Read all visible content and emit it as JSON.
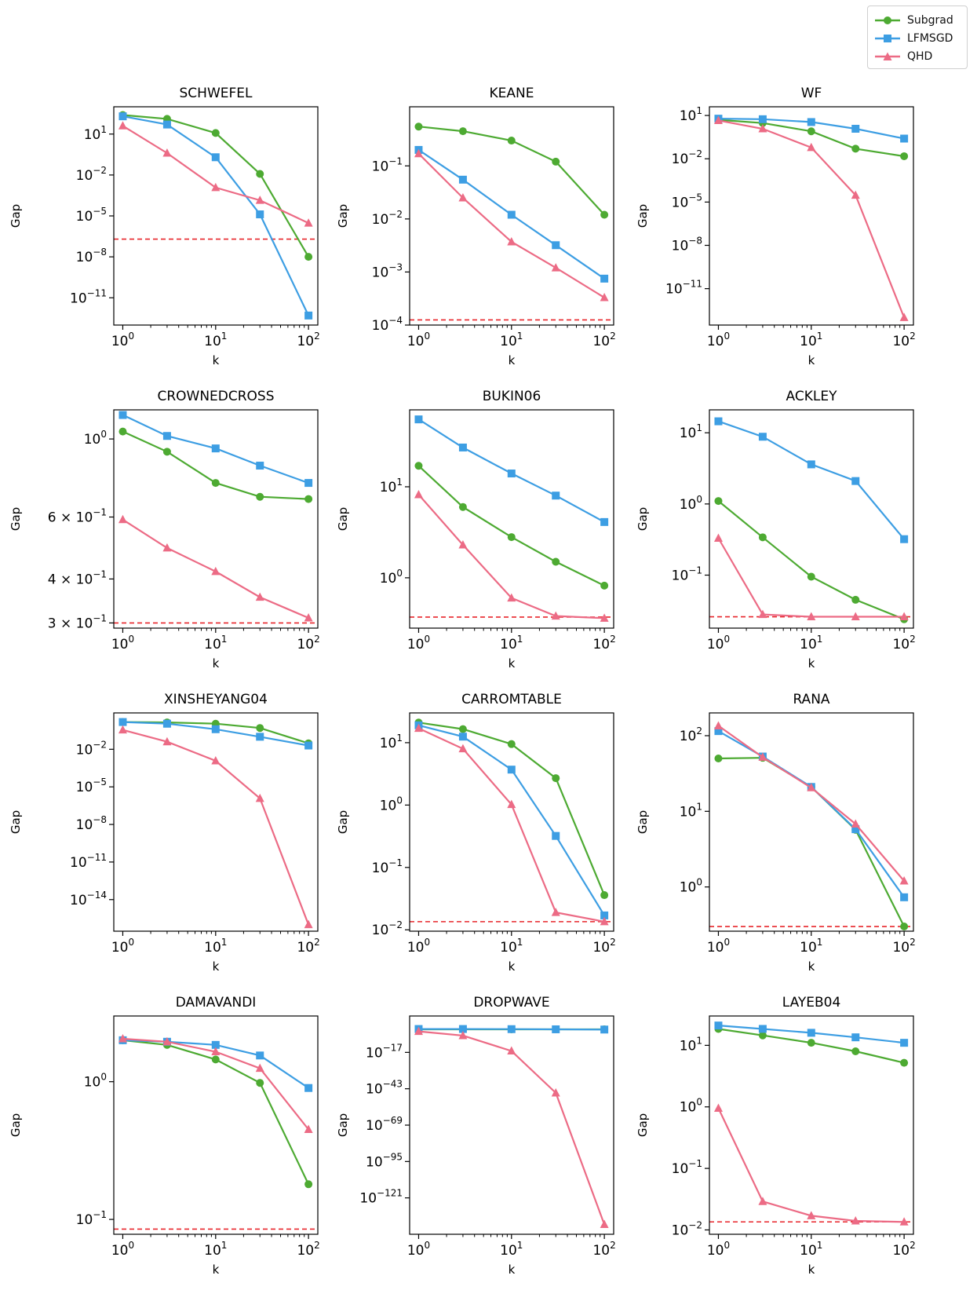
{
  "legend": {
    "items": [
      {
        "label": "Subgrad",
        "color": "#4daa32",
        "marker": "circle"
      },
      {
        "label": "LFMSGD",
        "color": "#3d9ee3",
        "marker": "square"
      },
      {
        "label": "QHD",
        "color": "#ec6b85",
        "marker": "triangle"
      }
    ]
  },
  "chart_data": [
    {
      "type": "line",
      "title": "SCHWEFEL",
      "xlabel": "k",
      "ylabel": "Gap",
      "xscale": "log",
      "yscale": "log",
      "x": [
        1,
        3,
        10,
        30,
        100
      ],
      "xlim": [
        0.8,
        126
      ],
      "ylim": [
        1e-13,
        1000.0
      ],
      "yticks": [
        {
          "v": 10,
          "label": "10^1"
        },
        {
          "v": 0.01,
          "label": "10^-2"
        },
        {
          "v": 1e-05,
          "label": "10^-5"
        },
        {
          "v": 1e-08,
          "label": "10^-8"
        },
        {
          "v": 1e-11,
          "label": "10^-11"
        }
      ],
      "reference": 2e-07,
      "series": [
        {
          "name": "Subgrad",
          "values": [
            250,
            130,
            12,
            0.012,
            1e-08
          ]
        },
        {
          "name": "LFMSGD",
          "values": [
            200,
            50,
            0.2,
            1.3e-05,
            5e-13
          ]
        },
        {
          "name": "QHD",
          "values": [
            40,
            0.4,
            0.0012,
            0.00014,
            3e-06
          ]
        }
      ]
    },
    {
      "type": "line",
      "title": "KEANE",
      "xlabel": "k",
      "ylabel": "Gap",
      "xscale": "log",
      "yscale": "log",
      "x": [
        1,
        3,
        10,
        30,
        100
      ],
      "xlim": [
        0.8,
        126
      ],
      "ylim": [
        0.0001,
        1.3
      ],
      "yticks": [
        {
          "v": 0.1,
          "label": "10^-1"
        },
        {
          "v": 0.01,
          "label": "10^-2"
        },
        {
          "v": 0.001,
          "label": "10^-3"
        },
        {
          "v": 0.0001,
          "label": "10^-4"
        }
      ],
      "reference": 0.000125,
      "series": [
        {
          "name": "Subgrad",
          "values": [
            0.55,
            0.45,
            0.3,
            0.12,
            0.012
          ]
        },
        {
          "name": "LFMSGD",
          "values": [
            0.2,
            0.055,
            0.012,
            0.0032,
            0.00075
          ]
        },
        {
          "name": "QHD",
          "values": [
            0.17,
            0.025,
            0.0037,
            0.0012,
            0.00033
          ]
        }
      ]
    },
    {
      "type": "line",
      "title": "WF",
      "xlabel": "k",
      "ylabel": "Gap",
      "xscale": "log",
      "yscale": "log",
      "x": [
        1,
        3,
        10,
        30,
        100
      ],
      "xlim": [
        0.8,
        126
      ],
      "ylim": [
        3e-14,
        40
      ],
      "yticks": [
        {
          "v": 10,
          "label": "10^1"
        },
        {
          "v": 0.01,
          "label": "10^-2"
        },
        {
          "v": 1e-05,
          "label": "10^-5"
        },
        {
          "v": 1e-08,
          "label": "10^-8"
        },
        {
          "v": 1e-11,
          "label": "10^-11"
        }
      ],
      "reference": null,
      "series": [
        {
          "name": "Subgrad",
          "values": [
            5,
            3,
            0.8,
            0.05,
            0.015
          ]
        },
        {
          "name": "LFMSGD",
          "values": [
            6,
            5.5,
            3.5,
            1.2,
            0.25
          ]
        },
        {
          "name": "QHD",
          "values": [
            4.5,
            1.2,
            0.06,
            3e-05,
            1e-13
          ]
        }
      ]
    },
    {
      "type": "line",
      "title": "CROWNEDCROSS",
      "xlabel": "k",
      "ylabel": "Gap",
      "xscale": "log",
      "yscale": "log",
      "x": [
        1,
        3,
        10,
        30,
        100
      ],
      "xlim": [
        0.8,
        126
      ],
      "ylim": [
        0.29,
        1.21
      ],
      "yticks": [
        {
          "v": 1.0,
          "label": "10^0"
        },
        {
          "v": 0.6,
          "label": "6 × 10^-1"
        },
        {
          "v": 0.4,
          "label": "4 × 10^-1"
        },
        {
          "v": 0.3,
          "label": "3 × 10^-1"
        }
      ],
      "reference": 0.3,
      "series": [
        {
          "name": "Subgrad",
          "values": [
            1.05,
            0.92,
            0.75,
            0.685,
            0.675
          ]
        },
        {
          "name": "LFMSGD",
          "values": [
            1.17,
            1.02,
            0.94,
            0.84,
            0.75
          ]
        },
        {
          "name": "QHD",
          "values": [
            0.59,
            0.49,
            0.42,
            0.355,
            0.31
          ]
        }
      ]
    },
    {
      "type": "line",
      "title": "BUKIN06",
      "xlabel": "k",
      "ylabel": "Gap",
      "xscale": "log",
      "yscale": "log",
      "x": [
        1,
        3,
        10,
        30,
        100
      ],
      "xlim": [
        0.8,
        126
      ],
      "ylim": [
        0.28,
        70
      ],
      "yticks": [
        {
          "v": 10,
          "label": "10^1"
        },
        {
          "v": 1,
          "label": "10^0"
        }
      ],
      "reference": 0.37,
      "series": [
        {
          "name": "Subgrad",
          "values": [
            17,
            6,
            2.8,
            1.5,
            0.82
          ]
        },
        {
          "name": "LFMSGD",
          "values": [
            55,
            27,
            14,
            8,
            4.1
          ]
        },
        {
          "name": "QHD",
          "values": [
            8.2,
            2.3,
            0.6,
            0.38,
            0.36
          ]
        }
      ]
    },
    {
      "type": "line",
      "title": "ACKLEY",
      "xlabel": "k",
      "ylabel": "Gap",
      "xscale": "log",
      "yscale": "log",
      "x": [
        1,
        3,
        10,
        30,
        100
      ],
      "xlim": [
        0.8,
        126
      ],
      "ylim": [
        0.018,
        21
      ],
      "yticks": [
        {
          "v": 10,
          "label": "10^1"
        },
        {
          "v": 1,
          "label": "10^0"
        },
        {
          "v": 0.1,
          "label": "10^-1"
        }
      ],
      "reference": 0.026,
      "series": [
        {
          "name": "Subgrad",
          "values": [
            1.1,
            0.34,
            0.095,
            0.045,
            0.024
          ]
        },
        {
          "name": "LFMSGD",
          "values": [
            14.5,
            8.8,
            3.6,
            2.1,
            0.32
          ]
        },
        {
          "name": "QHD",
          "values": [
            0.33,
            0.028,
            0.026,
            0.026,
            0.026
          ]
        }
      ]
    },
    {
      "type": "line",
      "title": "XINSHEYANG04",
      "xlabel": "k",
      "ylabel": "Gap",
      "xscale": "log",
      "yscale": "log",
      "x": [
        1,
        3,
        10,
        30,
        100
      ],
      "xlim": [
        0.8,
        126
      ],
      "ylim": [
        3e-17,
        8
      ],
      "yticks": [
        {
          "v": 0.01,
          "label": "10^-2"
        },
        {
          "v": 1e-05,
          "label": "10^-5"
        },
        {
          "v": 1e-08,
          "label": "10^-8"
        },
        {
          "v": 1e-11,
          "label": "10^-11"
        },
        {
          "v": 1e-14,
          "label": "10^-14"
        }
      ],
      "reference": null,
      "series": [
        {
          "name": "Subgrad",
          "values": [
            1.5,
            1.4,
            1.1,
            0.5,
            0.03
          ]
        },
        {
          "name": "LFMSGD",
          "values": [
            1.5,
            1.1,
            0.4,
            0.1,
            0.02
          ]
        },
        {
          "name": "QHD",
          "values": [
            0.35,
            0.04,
            0.0012,
            1.2e-06,
            1e-16
          ]
        }
      ]
    },
    {
      "type": "line",
      "title": "CARROMTABLE",
      "xlabel": "k",
      "ylabel": "Gap",
      "xscale": "log",
      "yscale": "log",
      "x": [
        1,
        3,
        10,
        30,
        100
      ],
      "xlim": [
        0.8,
        126
      ],
      "ylim": [
        0.0095,
        30
      ],
      "yticks": [
        {
          "v": 10,
          "label": "10^1"
        },
        {
          "v": 1,
          "label": "10^0"
        },
        {
          "v": 0.1,
          "label": "10^-1"
        },
        {
          "v": 0.01,
          "label": "10^-2"
        }
      ],
      "reference": 0.0135,
      "series": [
        {
          "name": "Subgrad",
          "values": [
            21,
            16.5,
            9.5,
            2.7,
            0.036
          ]
        },
        {
          "name": "LFMSGD",
          "values": [
            19,
            12.5,
            3.7,
            0.32,
            0.017
          ]
        },
        {
          "name": "QHD",
          "values": [
            17,
            8,
            1.02,
            0.019,
            0.0135
          ]
        }
      ]
    },
    {
      "type": "line",
      "title": "RANA",
      "xlabel": "k",
      "ylabel": "Gap",
      "xscale": "log",
      "yscale": "log",
      "x": [
        1,
        3,
        10,
        30,
        100
      ],
      "xlim": [
        0.8,
        126
      ],
      "ylim": [
        0.26,
        200
      ],
      "yticks": [
        {
          "v": 100,
          "label": "10^2"
        },
        {
          "v": 10,
          "label": "10^1"
        },
        {
          "v": 1,
          "label": "10^0"
        }
      ],
      "reference": 0.3,
      "series": [
        {
          "name": "Subgrad",
          "values": [
            50,
            51,
            21,
            5.7,
            0.3
          ]
        },
        {
          "name": "LFMSGD",
          "values": [
            115,
            53,
            21,
            5.8,
            0.73
          ]
        },
        {
          "name": "QHD",
          "values": [
            135,
            52,
            20.5,
            6.8,
            1.2
          ]
        }
      ]
    },
    {
      "type": "line",
      "title": "DAMAVANDI",
      "xlabel": "k",
      "ylabel": "Gap",
      "xscale": "log",
      "yscale": "log",
      "x": [
        1,
        3,
        10,
        30,
        100
      ],
      "xlim": [
        0.8,
        126
      ],
      "ylim": [
        0.078,
        3.0
      ],
      "yticks": [
        {
          "v": 1,
          "label": "10^0"
        },
        {
          "v": 0.1,
          "label": "10^-1"
        }
      ],
      "reference": 0.085,
      "series": [
        {
          "name": "Subgrad",
          "values": [
            2.0,
            1.85,
            1.45,
            0.98,
            0.18
          ]
        },
        {
          "name": "LFMSGD",
          "values": [
            2.0,
            1.95,
            1.85,
            1.55,
            0.9
          ]
        },
        {
          "name": "QHD",
          "values": [
            2.05,
            1.95,
            1.65,
            1.25,
            0.45
          ]
        }
      ]
    },
    {
      "type": "line",
      "title": "DROPWAVE",
      "xlabel": "k",
      "ylabel": "Gap",
      "xscale": "log",
      "yscale": "log",
      "x": [
        1,
        3,
        10,
        30,
        100
      ],
      "xlim": [
        0.8,
        126
      ],
      "ylim": [
        1e-147,
        1000000000.0
      ],
      "yticks": [
        {
          "v": 1e-17,
          "label": "10^-17"
        },
        {
          "v": 1e-43,
          "label": "10^-43"
        },
        {
          "v": 1e-69,
          "label": "10^-69"
        },
        {
          "v": 1e-95,
          "label": "10^-95"
        },
        {
          "v": 1e-121,
          "label": "10^-121"
        }
      ],
      "reference": null,
      "series": [
        {
          "name": "Subgrad",
          "values": [
            0.3,
            0.3,
            0.3,
            0.3,
            0.3
          ]
        },
        {
          "name": "LFMSGD",
          "values": [
            0.5,
            0.5,
            0.4,
            0.3,
            0.2
          ]
        },
        {
          "name": "QHD",
          "values": [
            0.01,
            1e-05,
            1e-16,
            1e-46,
            1e-140
          ]
        }
      ]
    },
    {
      "type": "line",
      "title": "LAYEB04",
      "xlabel": "k",
      "ylabel": "Gap",
      "xscale": "log",
      "yscale": "log",
      "x": [
        1,
        3,
        10,
        30,
        100
      ],
      "xlim": [
        0.8,
        126
      ],
      "ylim": [
        0.0085,
        30
      ],
      "yticks": [
        {
          "v": 10,
          "label": "10^1"
        },
        {
          "v": 1,
          "label": "10^0"
        },
        {
          "v": 0.1,
          "label": "10^-1"
        },
        {
          "v": 0.01,
          "label": "10^-2"
        }
      ],
      "reference": 0.0135,
      "series": [
        {
          "name": "Subgrad",
          "values": [
            18.5,
            14.5,
            11,
            8,
            5.2
          ]
        },
        {
          "name": "LFMSGD",
          "values": [
            21,
            18.5,
            16,
            13.5,
            11
          ]
        },
        {
          "name": "QHD",
          "values": [
            0.95,
            0.029,
            0.017,
            0.014,
            0.0135
          ]
        }
      ]
    }
  ]
}
